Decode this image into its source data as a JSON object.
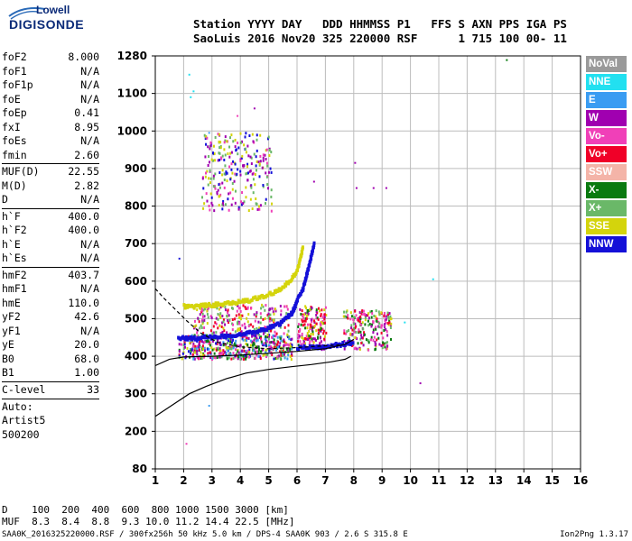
{
  "logo": {
    "line1": "Lowell",
    "line2": "DIGISONDE"
  },
  "header": {
    "row1": "Station YYYY DAY   DDD HHMMSS P1   FFS S AXN PPS IGA PS",
    "row2": "SaoLuis 2016 Nov20 325 220000 RSF      1 715 100 00- 11"
  },
  "params": {
    "g1": [
      {
        "label": "foF2",
        "value": "8.000"
      },
      {
        "label": "foF1",
        "value": "N/A"
      },
      {
        "label": "foF1p",
        "value": "N/A"
      },
      {
        "label": "foE",
        "value": "N/A"
      },
      {
        "label": "foEp",
        "value": "0.41"
      },
      {
        "label": "fxI",
        "value": "8.95"
      },
      {
        "label": "foEs",
        "value": "N/A"
      },
      {
        "label": "fmin",
        "value": "2.60"
      }
    ],
    "g2": [
      {
        "label": "MUF(D)",
        "value": "22.55"
      },
      {
        "label": "M(D)",
        "value": "2.82"
      },
      {
        "label": "D",
        "value": "N/A"
      }
    ],
    "g3": [
      {
        "label": "h`F",
        "value": "400.0"
      },
      {
        "label": "h`F2",
        "value": "400.0"
      },
      {
        "label": "h`E",
        "value": "N/A"
      },
      {
        "label": "h`Es",
        "value": "N/A"
      }
    ],
    "g4": [
      {
        "label": "hmF2",
        "value": "403.7"
      },
      {
        "label": "hmF1",
        "value": "N/A"
      },
      {
        "label": "hmE",
        "value": "110.0"
      },
      {
        "label": "yF2",
        "value": "42.6"
      },
      {
        "label": "yF1",
        "value": "N/A"
      },
      {
        "label": "yE",
        "value": "20.0"
      },
      {
        "label": "B0",
        "value": "68.0"
      },
      {
        "label": "B1",
        "value": "1.00"
      }
    ],
    "clevel": {
      "label": "C-level",
      "value": "33"
    },
    "auto": [
      "Auto:",
      "Artist5",
      "500200"
    ]
  },
  "legend": [
    {
      "label": "NoVal",
      "color": "#9a9a9a"
    },
    {
      "label": "NNE",
      "color": "#22e0f0"
    },
    {
      "label": "E",
      "color": "#3a9cf2"
    },
    {
      "label": "W",
      "color": "#a000b0"
    },
    {
      "label": "Vo-",
      "color": "#f040b8"
    },
    {
      "label": "Vo+",
      "color": "#f00028"
    },
    {
      "label": "SSW",
      "color": "#f4b4a8"
    },
    {
      "label": "X-",
      "color": "#0a7a10"
    },
    {
      "label": "X+",
      "color": "#6ab868"
    },
    {
      "label": "SSE",
      "color": "#d4d40c"
    },
    {
      "label": "NNW",
      "color": "#1410d8"
    }
  ],
  "dmuf": {
    "row1": "D    100  200  400  600  800 1000 1500 3000 [km]",
    "row2": "MUF  8.3  8.4  8.8  9.3 10.0 11.2 14.4 22.5 [MHz]"
  },
  "footer": {
    "left": "SAA0K_2016325220000.RSF / 300fx256h 50 kHz 5.0 km / DPS-4 SAA0K 903 / 2.6 S 315.8 E",
    "right": "Ion2Png 1.3.17"
  },
  "chart_data": {
    "type": "scatter",
    "x_ticks": [
      "1",
      "2",
      "3",
      "4",
      "5",
      "6",
      "7",
      "8",
      "9",
      "10",
      "11",
      "12",
      "13",
      "14",
      "15",
      "16"
    ],
    "y_ticks": [
      "80",
      "200",
      "300",
      "400",
      "500",
      "600",
      "700",
      "800",
      "900",
      "1000",
      "1100",
      "1280"
    ],
    "xlim": [
      1,
      16
    ],
    "y_axis_values": [
      80,
      200,
      300,
      400,
      500,
      600,
      700,
      800,
      900,
      1000,
      1100,
      1280
    ],
    "profile_curve": [
      [
        1.0,
        240
      ],
      [
        1.3,
        255
      ],
      [
        1.7,
        275
      ],
      [
        2.2,
        300
      ],
      [
        2.8,
        320
      ],
      [
        3.5,
        340
      ],
      [
        4.2,
        355
      ],
      [
        5.0,
        365
      ],
      [
        5.8,
        372
      ],
      [
        6.5,
        378
      ],
      [
        7.2,
        385
      ],
      [
        7.7,
        392
      ],
      [
        7.9,
        400
      ]
    ],
    "height_curve_dashed": [
      [
        1.0,
        580
      ],
      [
        1.3,
        555
      ],
      [
        1.7,
        525
      ],
      [
        2.1,
        495
      ],
      [
        2.6,
        462
      ],
      [
        3.2,
        437
      ],
      [
        4.0,
        425
      ],
      [
        5.0,
        420
      ],
      [
        6.0,
        423
      ],
      [
        7.0,
        428
      ],
      [
        7.5,
        430
      ]
    ],
    "height_curve_solid": [
      [
        1.0,
        375
      ],
      [
        1.5,
        392
      ],
      [
        2.0,
        398
      ],
      [
        3.0,
        400
      ],
      [
        4.0,
        403
      ],
      [
        5.0,
        408
      ],
      [
        6.0,
        413
      ],
      [
        7.0,
        420
      ],
      [
        7.7,
        432
      ],
      [
        8.0,
        445
      ]
    ],
    "traces": [
      {
        "series": "NNW",
        "points": [
          [
            1.8,
            448
          ],
          [
            2.2,
            448
          ],
          [
            2.6,
            449
          ],
          [
            3.0,
            451
          ],
          [
            3.4,
            453
          ],
          [
            3.8,
            456
          ],
          [
            4.2,
            461
          ],
          [
            4.6,
            468
          ],
          [
            5.0,
            476
          ],
          [
            5.4,
            488
          ],
          [
            5.6,
            500
          ],
          [
            5.8,
            515
          ],
          [
            5.9,
            530
          ],
          [
            6.0,
            550
          ],
          [
            6.2,
            580
          ],
          [
            6.3,
            610
          ],
          [
            6.4,
            640
          ],
          [
            6.5,
            670
          ],
          [
            6.6,
            700
          ]
        ]
      },
      {
        "series": "SSE",
        "points": [
          [
            2.0,
            533
          ],
          [
            2.4,
            533
          ],
          [
            2.8,
            535
          ],
          [
            3.2,
            538
          ],
          [
            3.6,
            541
          ],
          [
            4.0,
            545
          ],
          [
            4.4,
            551
          ],
          [
            4.8,
            559
          ],
          [
            5.2,
            570
          ],
          [
            5.5,
            585
          ],
          [
            5.8,
            605
          ],
          [
            6.0,
            630
          ],
          [
            6.1,
            660
          ],
          [
            6.2,
            690
          ]
        ]
      },
      {
        "series": "NNW",
        "points": [
          [
            6.0,
            422
          ],
          [
            6.4,
            423
          ],
          [
            6.8,
            425
          ],
          [
            7.2,
            428
          ],
          [
            7.6,
            432
          ],
          [
            8.0,
            438
          ]
        ]
      }
    ],
    "clusters": [
      {
        "x": [
          1.8,
          5.8
        ],
        "y": [
          395,
          460
        ],
        "n": 520,
        "colors": [
          "Vo-",
          "W",
          "Vo+",
          "X-",
          "X+",
          "SSE",
          "NNW",
          "E"
        ]
      },
      {
        "x": [
          2.3,
          5.7
        ],
        "y": [
          460,
          540
        ],
        "n": 220,
        "colors": [
          "Vo-",
          "W",
          "Vo+",
          "SSE",
          "X+"
        ]
      },
      {
        "x": [
          6.0,
          7.0
        ],
        "y": [
          420,
          540
        ],
        "n": 170,
        "colors": [
          "Vo-",
          "W",
          "Vo+",
          "X-",
          "SSE"
        ]
      },
      {
        "x": [
          7.6,
          9.3
        ],
        "y": [
          420,
          525
        ],
        "n": 210,
        "colors": [
          "Vo-",
          "W",
          "Vo+",
          "X-",
          "X+",
          "SSE"
        ]
      },
      {
        "x": [
          2.6,
          5.1
        ],
        "y": [
          790,
          1000
        ],
        "n": 260,
        "colors": [
          "SSE",
          "W",
          "X+",
          "Vo-",
          "NNW"
        ]
      }
    ],
    "isolated_points": [
      {
        "x": 13.4,
        "y": 1260,
        "c": "X-"
      },
      {
        "x": 2.2,
        "y": 1190,
        "c": "NNE"
      },
      {
        "x": 2.35,
        "y": 1110,
        "c": "NNE"
      },
      {
        "x": 2.25,
        "y": 1090,
        "c": "NNE"
      },
      {
        "x": 1.85,
        "y": 660,
        "c": "NNW"
      },
      {
        "x": 6.6,
        "y": 865,
        "c": "W"
      },
      {
        "x": 8.05,
        "y": 915,
        "c": "W"
      },
      {
        "x": 8.1,
        "y": 848,
        "c": "W"
      },
      {
        "x": 8.7,
        "y": 848,
        "c": "W"
      },
      {
        "x": 9.15,
        "y": 848,
        "c": "W"
      },
      {
        "x": 10.8,
        "y": 605,
        "c": "NNE"
      },
      {
        "x": 10.35,
        "y": 328,
        "c": "W"
      },
      {
        "x": 2.1,
        "y": 160,
        "c": "Vo-"
      },
      {
        "x": 2.9,
        "y": 268,
        "c": "E"
      },
      {
        "x": 4.5,
        "y": 1060,
        "c": "W"
      },
      {
        "x": 3.9,
        "y": 1040,
        "c": "Vo-"
      },
      {
        "x": 2.9,
        "y": 995,
        "c": "E"
      },
      {
        "x": 9.8,
        "y": 490,
        "c": "NNE"
      }
    ]
  }
}
